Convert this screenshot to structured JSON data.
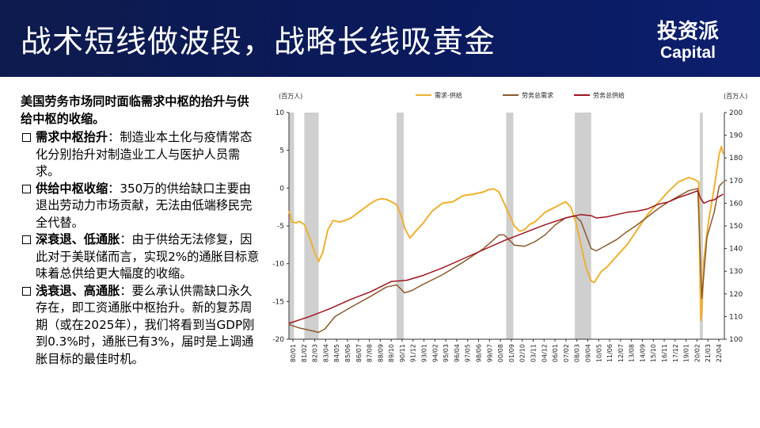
{
  "header": {
    "title": "战术短线做波段，战略长线吸黄金",
    "brand_cn": "投资派",
    "brand_en": "Capital"
  },
  "text_panel": {
    "lead": "美国劳务市场同时面临需求中枢的抬升与供给中枢的收缩。",
    "bullets": [
      {
        "head": "需求中枢抬升",
        "sep": "：",
        "body": "制造业本土化与疫情常态化分别抬升对制造业工人与医护人员需求。"
      },
      {
        "head": "供给中枢收缩",
        "sep": "：",
        "body": "350万的供给缺口主要由退出劳动力市场贡献，无法由低端移民完全代替。"
      },
      {
        "head": "深衰退、低通胀",
        "sep": "：",
        "body": "由于供给无法修复，因此对于美联储而言，实现2%的通胀目标意味着总供给更大幅度的收缩。"
      },
      {
        "head": "浅衰退、高通胀",
        "sep": "：",
        "body": "要么承认供需缺口永久存在，即工资通胀中枢抬升。新的复苏周期（或在2025年），我们将看到当GDP刚到0.3%时，通胀已有3%，届时是上调通胀目标的最佳时机。"
      }
    ]
  },
  "chart_data": {
    "type": "line",
    "left_unit": "(百万人)",
    "right_unit": "(百万人)",
    "y_left_lim": [
      -20,
      10
    ],
    "y_left_ticks": [
      "10",
      "5",
      "0",
      "-5",
      "-10",
      "-15",
      "-20"
    ],
    "y_right_lim": [
      100,
      200
    ],
    "y_right_ticks": [
      "200",
      "190",
      "180",
      "170",
      "160",
      "150",
      "140",
      "130",
      "120",
      "110",
      "100"
    ],
    "x_lim": [
      1980.0,
      2022.5
    ],
    "x_tick_labels": [
      "80/01",
      "81/02",
      "82/03",
      "83/04",
      "84/05",
      "85/06",
      "86/07",
      "87/08",
      "88/09",
      "89/10",
      "90/11",
      "91/12",
      "93/01",
      "94/02",
      "95/03",
      "96/04",
      "97/05",
      "98/06",
      "99/07",
      "00/08",
      "01/09",
      "02/10",
      "03/11",
      "04/12",
      "06/01",
      "07/02",
      "08/03",
      "09/04",
      "10/05",
      "11/06",
      "12/07",
      "13/08",
      "14/09",
      "15/10",
      "16/11",
      "17/12",
      "19/01",
      "20/02",
      "21/03",
      "22/04"
    ],
    "recessions": [
      [
        1980.0,
        1980.5
      ],
      [
        1981.5,
        1982.9
      ],
      [
        1990.5,
        1991.2
      ],
      [
        2001.2,
        2001.9
      ],
      [
        2007.9,
        2009.5
      ],
      [
        2020.1,
        2020.4
      ]
    ],
    "series": [
      {
        "name": "需求-供给",
        "axis": "left",
        "color": "#f0b030",
        "x": [
          1980.0,
          1980.3,
          1980.7,
          1981.0,
          1981.5,
          1982.0,
          1982.5,
          1982.9,
          1983.3,
          1983.8,
          1984.3,
          1985.0,
          1986.0,
          1987.0,
          1988.0,
          1988.5,
          1989.0,
          1989.5,
          1990.0,
          1990.5,
          1991.0,
          1991.3,
          1991.8,
          1992.5,
          1993.0,
          1994.0,
          1995.0,
          1996.0,
          1997.0,
          1998.0,
          1999.0,
          1999.5,
          2000.0,
          2000.5,
          2001.0,
          2001.5,
          2002.0,
          2002.5,
          2003.0,
          2003.5,
          2004.0,
          2005.0,
          2006.0,
          2007.0,
          2007.5,
          2008.0,
          2008.5,
          2009.0,
          2009.5,
          2009.8,
          2010.5,
          2011.0,
          2012.0,
          2013.0,
          2014.0,
          2015.0,
          2016.0,
          2017.0,
          2018.0,
          2019.0,
          2019.5,
          2020.0,
          2020.08,
          2020.2,
          2020.3,
          2020.5,
          2020.8,
          2021.0,
          2021.5,
          2022.0,
          2022.2,
          2022.4
        ],
        "values": [
          -3.0,
          -4.5,
          -4.6,
          -4.4,
          -4.8,
          -6.5,
          -8.5,
          -9.7,
          -8.5,
          -5.5,
          -4.3,
          -4.5,
          -4.0,
          -3.0,
          -2.0,
          -1.6,
          -1.4,
          -1.5,
          -1.8,
          -2.2,
          -3.8,
          -5.3,
          -6.6,
          -5.5,
          -4.8,
          -3.0,
          -2.0,
          -1.8,
          -1.0,
          -0.8,
          -0.5,
          -0.2,
          -0.1,
          -0.5,
          -2.0,
          -3.5,
          -5.0,
          -5.7,
          -5.5,
          -4.8,
          -4.5,
          -3.2,
          -2.5,
          -1.8,
          -2.5,
          -4.5,
          -7.5,
          -10.5,
          -12.3,
          -12.5,
          -11.0,
          -10.5,
          -9.0,
          -7.5,
          -5.5,
          -3.5,
          -2.0,
          -0.5,
          0.8,
          1.4,
          1.2,
          0.8,
          -8.5,
          -17.5,
          -16.5,
          -9.5,
          -6.0,
          -4.0,
          0.0,
          4.5,
          5.5,
          4.5
        ]
      },
      {
        "name": "劳务总需求",
        "axis": "right",
        "color": "#8b5a2b",
        "x": [
          1980.0,
          1981.0,
          1982.0,
          1982.9,
          1983.5,
          1984.5,
          1986.0,
          1988.0,
          1989.5,
          1990.5,
          1991.3,
          1992.0,
          1993.0,
          1995.0,
          1997.0,
          1999.0,
          2000.5,
          2001.0,
          2002.0,
          2003.0,
          2004.0,
          2005.0,
          2006.0,
          2007.0,
          2007.9,
          2008.5,
          2009.5,
          2010.0,
          2011.0,
          2012.0,
          2013.0,
          2014.0,
          2015.0,
          2016.0,
          2017.0,
          2018.0,
          2019.0,
          2019.9,
          2020.3,
          2020.8,
          2021.5,
          2022.0,
          2022.4
        ],
        "values": [
          106.5,
          105.0,
          104.0,
          103.0,
          104.5,
          110.0,
          114.0,
          119.0,
          123.0,
          124.0,
          120.5,
          121.5,
          124.0,
          128.5,
          134.0,
          140.0,
          146.0,
          146.0,
          141.5,
          141.0,
          143.0,
          146.0,
          150.5,
          153.5,
          154.5,
          152.0,
          140.0,
          139.0,
          141.5,
          144.0,
          147.5,
          150.5,
          154.0,
          157.5,
          160.5,
          163.0,
          165.5,
          166.5,
          118.0,
          145.0,
          156.0,
          167.5,
          169.5
        ]
      },
      {
        "name": "劳务总供给",
        "axis": "right",
        "color": "#a01420",
        "x": [
          1980.0,
          1982.0,
          1984.0,
          1986.0,
          1988.0,
          1990.0,
          1991.5,
          1993.0,
          1995.0,
          1997.0,
          1999.0,
          2001.0,
          2003.0,
          2005.0,
          2007.0,
          2008.5,
          2009.5,
          2010.0,
          2011.0,
          2012.0,
          2013.0,
          2014.0,
          2015.0,
          2016.0,
          2017.0,
          2018.0,
          2019.0,
          2019.9,
          2020.2,
          2020.5,
          2021.0,
          2021.5,
          2022.0,
          2022.4
        ],
        "values": [
          107.0,
          110.0,
          113.5,
          117.5,
          121.0,
          125.5,
          126.0,
          128.0,
          131.5,
          135.5,
          139.5,
          143.5,
          147.0,
          150.5,
          153.5,
          155.0,
          154.5,
          153.5,
          154.0,
          155.0,
          156.0,
          156.5,
          157.5,
          159.5,
          160.5,
          162.5,
          164.0,
          165.5,
          162.0,
          160.0,
          161.0,
          161.5,
          163.0,
          164.0
        ]
      }
    ]
  }
}
